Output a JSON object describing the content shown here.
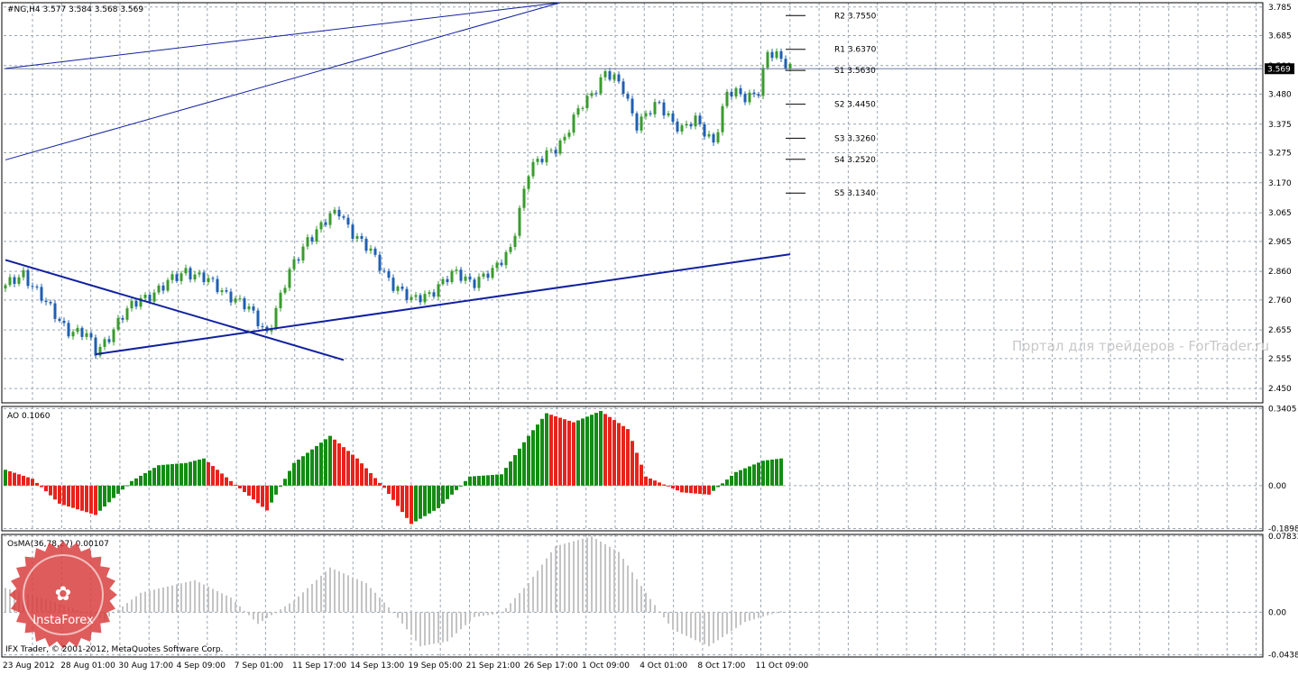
{
  "window": {
    "symbol_header": "#NG,H4  3.577 3.584 3.568 3.569",
    "copyright": "IFX Trader, © 2001-2012, MetaQuotes Software Corp.",
    "watermark": "Портал для трейдеров - ForTrader.ru",
    "logo_text": "InstaForex"
  },
  "colors": {
    "bull": "#3a9b2e",
    "bear": "#1f5fb0",
    "grid": "#9aa6b2",
    "trendline": "#1020a0",
    "ao_up": "#148c14",
    "ao_down": "#e8231b",
    "osma": "#c4c4c4",
    "logo": "#d94040"
  },
  "chart_data": [
    {
      "type": "candlestick",
      "panel": "price",
      "title": "#NG,H4",
      "ohlc_last": {
        "open": 3.577,
        "high": 3.584,
        "low": 3.568,
        "close": 3.569
      },
      "current_price_label": "3.569",
      "ylim": [
        2.4,
        3.8
      ],
      "yticks": [
        "3.785",
        "3.685",
        "3.580",
        "3.480",
        "3.375",
        "3.275",
        "3.170",
        "3.065",
        "2.965",
        "2.860",
        "2.760",
        "2.655",
        "2.555",
        "2.450"
      ],
      "ytick_values": [
        3.785,
        3.685,
        3.58,
        3.48,
        3.375,
        3.275,
        3.17,
        3.065,
        2.965,
        2.86,
        2.76,
        2.655,
        2.555,
        2.45
      ],
      "xticks": [
        "23 Aug 2012",
        "28 Aug 01:00",
        "30 Aug 17:00",
        "4 Sep 09:00",
        "7 Sep 01:00",
        "11 Sep 17:00",
        "14 Sep 13:00",
        "19 Sep 05:00",
        "21 Sep 21:00",
        "26 Sep 17:00",
        "1 Oct 09:00",
        "4 Oct 01:00",
        "8 Oct 17:00",
        "11 Oct 09:00"
      ],
      "close_path": [
        [
          0,
          2.8
        ],
        [
          4,
          2.86
        ],
        [
          9,
          2.74
        ],
        [
          14,
          2.66
        ],
        [
          18,
          2.63
        ],
        [
          20,
          2.58
        ],
        [
          25,
          2.68
        ],
        [
          30,
          2.77
        ],
        [
          35,
          2.8
        ],
        [
          40,
          2.87
        ],
        [
          45,
          2.82
        ],
        [
          50,
          2.78
        ],
        [
          54,
          2.72
        ],
        [
          58,
          2.65
        ],
        [
          63,
          2.85
        ],
        [
          67,
          2.98
        ],
        [
          71,
          3.03
        ],
        [
          74,
          3.07
        ],
        [
          78,
          2.98
        ],
        [
          82,
          2.9
        ],
        [
          86,
          2.82
        ],
        [
          90,
          2.75
        ],
        [
          95,
          2.8
        ],
        [
          100,
          2.85
        ],
        [
          104,
          2.83
        ],
        [
          108,
          2.85
        ],
        [
          112,
          2.95
        ],
        [
          116,
          3.2
        ],
        [
          120,
          3.28
        ],
        [
          124,
          3.32
        ],
        [
          128,
          3.45
        ],
        [
          133,
          3.55
        ],
        [
          137,
          3.5
        ],
        [
          140,
          3.38
        ],
        [
          145,
          3.44
        ],
        [
          150,
          3.36
        ],
        [
          153,
          3.38
        ],
        [
          157,
          3.32
        ],
        [
          160,
          3.48
        ],
        [
          164,
          3.47
        ],
        [
          167,
          3.5
        ],
        [
          169,
          3.62
        ],
        [
          174,
          3.58
        ]
      ],
      "support_resistance": [
        {
          "label": "R2",
          "value": 3.755
        },
        {
          "label": "R1",
          "value": 3.637
        },
        {
          "label": "S1",
          "value": 3.563
        },
        {
          "label": "S2",
          "value": 3.445
        },
        {
          "label": "S3",
          "value": 3.326
        },
        {
          "label": "S4",
          "value": 3.252
        },
        {
          "label": "S5",
          "value": 3.134
        }
      ],
      "sr_labels": [
        "R2 3.7550",
        "R1 3.6370",
        "S1 3.5630",
        "S2 3.4450",
        "S3 3.3260",
        "S4 3.2520",
        "S5 3.1340"
      ],
      "trendlines": [
        {
          "from": [
            0,
            3.57
          ],
          "to": [
            123,
            3.8
          ]
        },
        {
          "from": [
            0,
            3.25
          ],
          "to": [
            123,
            3.8
          ]
        },
        {
          "from": [
            0,
            2.9
          ],
          "to": [
            75,
            2.55
          ]
        },
        {
          "from": [
            20,
            2.57
          ],
          "to": [
            174,
            2.92
          ]
        }
      ]
    },
    {
      "type": "bar",
      "panel": "ao",
      "title": "AO 0.1060",
      "ylim": [
        -0.2,
        0.35
      ],
      "yticks": [
        "0.3405",
        "0.00",
        "-0.1898"
      ],
      "ytick_values": [
        0.3405,
        0,
        -0.1898
      ],
      "path": [
        [
          0,
          0.07
        ],
        [
          6,
          0.03
        ],
        [
          12,
          -0.08
        ],
        [
          20,
          -0.13
        ],
        [
          28,
          0.02
        ],
        [
          34,
          0.09
        ],
        [
          40,
          0.1
        ],
        [
          44,
          0.12
        ],
        [
          50,
          0.02
        ],
        [
          58,
          -0.11
        ],
        [
          64,
          0.1
        ],
        [
          72,
          0.22
        ],
        [
          78,
          0.12
        ],
        [
          84,
          -0.01
        ],
        [
          90,
          -0.17
        ],
        [
          96,
          -0.1
        ],
        [
          103,
          0.04
        ],
        [
          110,
          0.05
        ],
        [
          116,
          0.22
        ],
        [
          120,
          0.32
        ],
        [
          126,
          0.28
        ],
        [
          132,
          0.33
        ],
        [
          138,
          0.25
        ],
        [
          142,
          0.04
        ],
        [
          150,
          -0.03
        ],
        [
          156,
          -0.04
        ],
        [
          162,
          0.06
        ],
        [
          168,
          0.11
        ],
        [
          172,
          0.12
        ]
      ]
    },
    {
      "type": "bar",
      "panel": "osma",
      "title": "OsMA(36,78,27) 0.00107",
      "ylim": [
        -0.046,
        0.08
      ],
      "yticks": [
        "0.07833",
        "0.00",
        "-0.04383"
      ],
      "ytick_values": [
        0.07833,
        0,
        -0.04383
      ],
      "path": [
        [
          0,
          0.025
        ],
        [
          10,
          0.012
        ],
        [
          22,
          -0.008
        ],
        [
          30,
          0.02
        ],
        [
          42,
          0.033
        ],
        [
          50,
          0.015
        ],
        [
          56,
          -0.012
        ],
        [
          64,
          0.012
        ],
        [
          72,
          0.046
        ],
        [
          80,
          0.03
        ],
        [
          86,
          0.0
        ],
        [
          92,
          -0.035
        ],
        [
          98,
          -0.03
        ],
        [
          104,
          -0.005
        ],
        [
          110,
          -0.001
        ],
        [
          116,
          0.03
        ],
        [
          122,
          0.068
        ],
        [
          130,
          0.078
        ],
        [
          136,
          0.062
        ],
        [
          142,
          0.02
        ],
        [
          148,
          -0.018
        ],
        [
          156,
          -0.035
        ],
        [
          164,
          -0.01
        ],
        [
          172,
          0.001
        ]
      ]
    }
  ]
}
